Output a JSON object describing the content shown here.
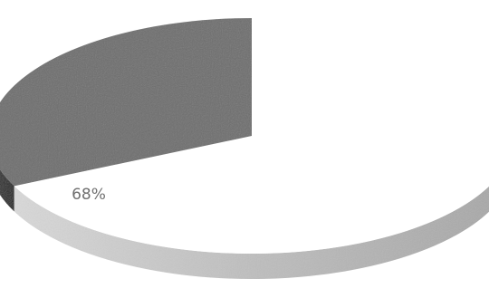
{
  "chart_data": {
    "type": "pie",
    "style": "3d",
    "slices": [
      {
        "label": "",
        "value": 68,
        "display": "68%",
        "color": "#ffffff",
        "side_color": "#b9b9b9"
      },
      {
        "label": "",
        "value": 32,
        "display": "",
        "color": "#6d6d6d",
        "side_color": "#555555"
      }
    ],
    "title": "",
    "legend": "none"
  }
}
